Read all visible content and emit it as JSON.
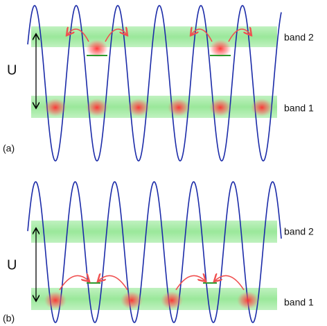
{
  "panels": [
    {
      "label": "(a)",
      "gap_label": "U",
      "bands": [
        "band 2",
        "band 1"
      ]
    },
    {
      "label": "(b)",
      "gap_label": "U",
      "bands": [
        "band 2",
        "band 1"
      ]
    }
  ]
}
